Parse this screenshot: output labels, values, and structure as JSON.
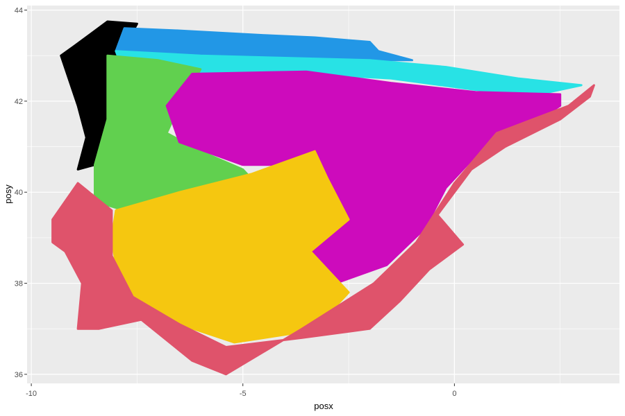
{
  "chart_data": {
    "type": "scatter",
    "title": "",
    "xlabel": "posx",
    "ylabel": "posy",
    "xlim": [
      -10.1,
      3.9
    ],
    "ylim": [
      35.8,
      44.1
    ],
    "x_ticks": [
      {
        "value": -10,
        "label": "-10"
      },
      {
        "value": -5,
        "label": "-5"
      },
      {
        "value": 0,
        "label": "0"
      }
    ],
    "y_ticks": [
      {
        "value": 36,
        "label": "36"
      },
      {
        "value": 38,
        "label": "38"
      },
      {
        "value": 40,
        "label": "40"
      },
      {
        "value": 42,
        "label": "42"
      },
      {
        "value": 44,
        "label": "44"
      }
    ],
    "x_minor_ticks": [
      -7.5,
      -2.5,
      2.5
    ],
    "y_minor_ticks": [
      37,
      39,
      41,
      43
    ],
    "grid": true,
    "legend": "none",
    "background_color": "#ebebeb",
    "grid_color": "#ffffff",
    "description": "Dense point map of the Iberian Peninsula colored by cluster",
    "series": [
      {
        "name": "cluster-black",
        "color": "#000000",
        "region_outline": [
          [
            -9.3,
            43.0
          ],
          [
            -9.0,
            43.2
          ],
          [
            -8.2,
            43.75
          ],
          [
            -7.5,
            43.7
          ],
          [
            -8.2,
            42.5
          ],
          [
            -8.2,
            41.6
          ],
          [
            -8.5,
            40.6
          ],
          [
            -8.9,
            40.5
          ],
          [
            -8.7,
            41.2
          ],
          [
            -8.9,
            41.9
          ]
        ]
      },
      {
        "name": "cluster-blue",
        "color": "#2297e6",
        "region_outline": [
          [
            -7.8,
            43.6
          ],
          [
            -6.5,
            43.55
          ],
          [
            -4.5,
            43.45
          ],
          [
            -3.3,
            43.4
          ],
          [
            -2.0,
            43.3
          ],
          [
            -1.8,
            43.1
          ],
          [
            -1.0,
            42.9
          ],
          [
            -2.5,
            42.9
          ],
          [
            -4.0,
            42.95
          ],
          [
            -5.5,
            43.0
          ],
          [
            -7.0,
            43.05
          ],
          [
            -8.0,
            43.1
          ]
        ]
      },
      {
        "name": "cluster-cyan",
        "color": "#28e2e5",
        "region_outline": [
          [
            -8.0,
            43.1
          ],
          [
            -6.0,
            43.0
          ],
          [
            -4.0,
            42.95
          ],
          [
            -2.0,
            42.9
          ],
          [
            -0.2,
            42.75
          ],
          [
            1.5,
            42.5
          ],
          [
            3.0,
            42.35
          ],
          [
            2.0,
            42.15
          ],
          [
            0.5,
            42.25
          ],
          [
            -1.5,
            42.5
          ],
          [
            -3.5,
            42.6
          ],
          [
            -6.0,
            42.5
          ],
          [
            -7.8,
            42.6
          ]
        ]
      },
      {
        "name": "cluster-green",
        "color": "#61d04f",
        "region_outline": [
          [
            -8.2,
            43.0
          ],
          [
            -7.0,
            42.9
          ],
          [
            -6.0,
            42.7
          ],
          [
            -6.5,
            41.9
          ],
          [
            -6.8,
            41.3
          ],
          [
            -6.0,
            40.9
          ],
          [
            -5.0,
            40.5
          ],
          [
            -4.8,
            40.3
          ],
          [
            -6.0,
            40.0
          ],
          [
            -7.0,
            39.9
          ],
          [
            -7.8,
            39.6
          ],
          [
            -8.5,
            39.8
          ],
          [
            -8.5,
            40.6
          ],
          [
            -8.2,
            41.6
          ]
        ]
      },
      {
        "name": "cluster-magenta",
        "color": "#cd0bbc",
        "region_outline": [
          [
            -6.2,
            42.6
          ],
          [
            -3.5,
            42.65
          ],
          [
            -1.5,
            42.4
          ],
          [
            0.5,
            42.2
          ],
          [
            2.5,
            42.15
          ],
          [
            2.5,
            41.9
          ],
          [
            1.5,
            41.3
          ],
          [
            0.5,
            40.8
          ],
          [
            -0.2,
            40.1
          ],
          [
            -0.7,
            39.2
          ],
          [
            -1.6,
            38.4
          ],
          [
            -2.8,
            38.0
          ],
          [
            -3.5,
            38.7
          ],
          [
            -3.2,
            39.3
          ],
          [
            -3.5,
            40.0
          ],
          [
            -4.0,
            40.6
          ],
          [
            -5.0,
            40.6
          ],
          [
            -6.5,
            41.1
          ],
          [
            -6.8,
            41.9
          ]
        ]
      },
      {
        "name": "cluster-yellow",
        "color": "#f5c710",
        "region_outline": [
          [
            -8.0,
            39.6
          ],
          [
            -6.5,
            40.0
          ],
          [
            -4.8,
            40.4
          ],
          [
            -3.3,
            40.9
          ],
          [
            -3.0,
            40.3
          ],
          [
            -2.5,
            39.4
          ],
          [
            -3.4,
            38.7
          ],
          [
            -2.5,
            37.8
          ],
          [
            -3.0,
            37.3
          ],
          [
            -3.8,
            36.9
          ],
          [
            -5.2,
            36.7
          ],
          [
            -6.5,
            37.1
          ],
          [
            -7.5,
            37.6
          ],
          [
            -8.0,
            38.4
          ],
          [
            -8.1,
            39.0
          ]
        ]
      },
      {
        "name": "cluster-red",
        "color": "#df536b",
        "region_outline": [
          [
            -9.5,
            39.4
          ],
          [
            -8.9,
            40.2
          ],
          [
            -8.1,
            39.6
          ],
          [
            -8.1,
            38.6
          ],
          [
            -7.6,
            37.7
          ],
          [
            -6.5,
            37.1
          ],
          [
            -5.4,
            36.6
          ],
          [
            -3.6,
            36.8
          ],
          [
            -2.0,
            37.0
          ],
          [
            -1.3,
            37.6
          ],
          [
            -0.6,
            38.3
          ],
          [
            0.2,
            38.85
          ],
          [
            -0.4,
            39.5
          ],
          [
            0.4,
            40.5
          ],
          [
            1.2,
            41.0
          ],
          [
            2.5,
            41.6
          ],
          [
            3.2,
            42.1
          ],
          [
            3.3,
            42.35
          ],
          [
            2.7,
            41.9
          ],
          [
            1.0,
            41.3
          ],
          [
            0.0,
            40.2
          ],
          [
            -0.9,
            38.9
          ],
          [
            -1.9,
            38.0
          ],
          [
            -3.6,
            37.0
          ],
          [
            -5.4,
            36.0
          ],
          [
            -6.2,
            36.3
          ],
          [
            -7.4,
            37.2
          ],
          [
            -8.4,
            37.0
          ],
          [
            -8.9,
            37.0
          ],
          [
            -8.8,
            38.0
          ],
          [
            -9.2,
            38.7
          ],
          [
            -9.5,
            38.9
          ]
        ]
      }
    ]
  }
}
